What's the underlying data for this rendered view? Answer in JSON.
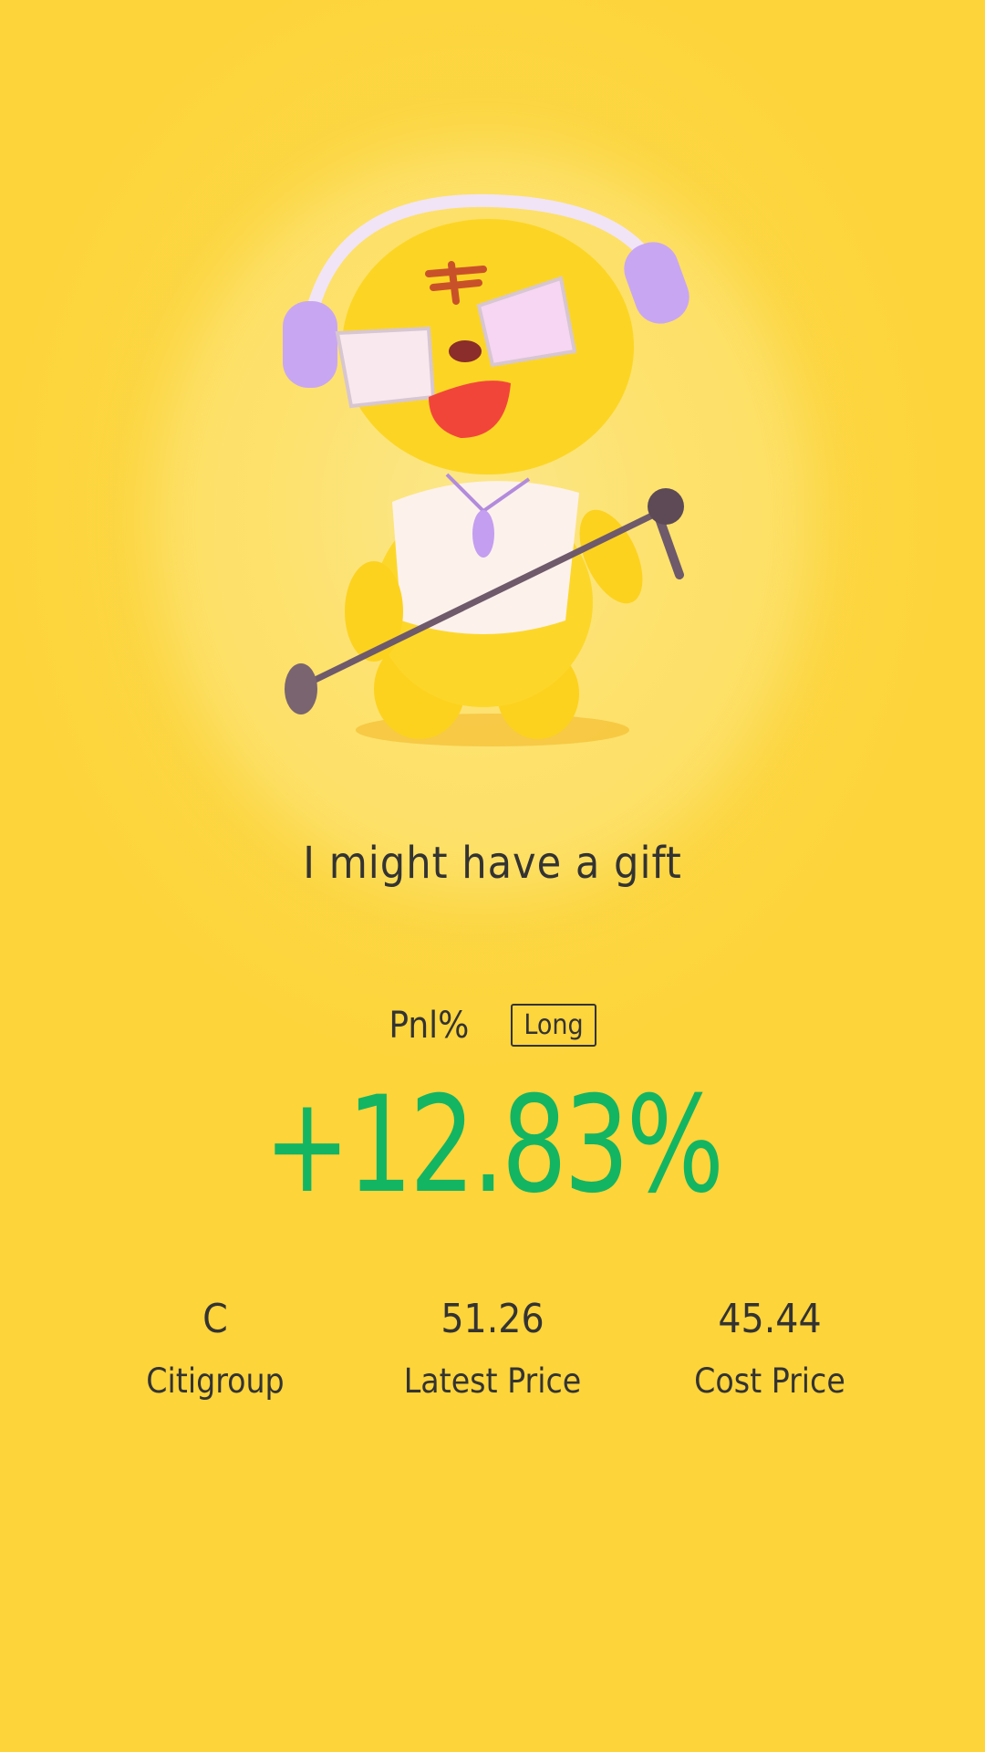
{
  "title": "I might have a gift",
  "pnl": {
    "label": "Pnl%",
    "side": "Long",
    "value": "+12.83%",
    "value_color": "#13b563"
  },
  "stats": [
    {
      "value": "C",
      "label": "Citigroup"
    },
    {
      "value": "51.26",
      "label": "Latest Price"
    },
    {
      "value": "45.44",
      "label": "Cost Price"
    }
  ],
  "colors": {
    "background": "#fdd43a",
    "text": "#333333"
  },
  "illustration": "tiger-mascot-singing-with-headphones-and-microphone"
}
